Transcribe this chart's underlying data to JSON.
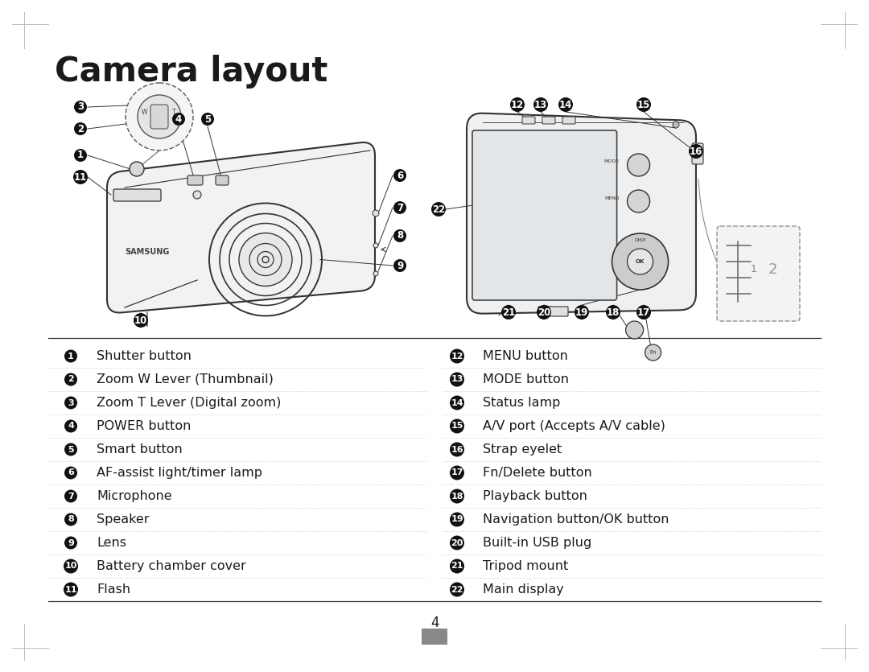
{
  "title": "Camera layout",
  "bg_color": "#ffffff",
  "page_number": "4",
  "left_items": [
    {
      "num": "1",
      "text": "Shutter button"
    },
    {
      "num": "2",
      "text": "Zoom W Lever (Thumbnail)"
    },
    {
      "num": "3",
      "text": "Zoom T Lever (Digital zoom)"
    },
    {
      "num": "4",
      "text": "POWER button"
    },
    {
      "num": "5",
      "text": "Smart button"
    },
    {
      "num": "6",
      "text": "AF-assist light/timer lamp"
    },
    {
      "num": "7",
      "text": "Microphone"
    },
    {
      "num": "8",
      "text": "Speaker"
    },
    {
      "num": "9",
      "text": "Lens"
    },
    {
      "num": "10",
      "text": "Battery chamber cover"
    },
    {
      "num": "11",
      "text": "Flash"
    }
  ],
  "right_items": [
    {
      "num": "12",
      "text": "MENU button"
    },
    {
      "num": "13",
      "text": "MODE button"
    },
    {
      "num": "14",
      "text": "Status lamp"
    },
    {
      "num": "15",
      "text": "A/V port (Accepts A/V cable)"
    },
    {
      "num": "16",
      "text": "Strap eyelet"
    },
    {
      "num": "17",
      "text": "Fn/Delete button"
    },
    {
      "num": "18",
      "text": "Playback button"
    },
    {
      "num": "19",
      "text": "Navigation button/OK button"
    },
    {
      "num": "20",
      "text": "Built-in USB plug"
    },
    {
      "num": "21",
      "text": "Tripod mount"
    },
    {
      "num": "22",
      "text": "Main display"
    }
  ],
  "title_fontsize": 30,
  "item_fontsize": 11.5,
  "text_color": "#1a1a1a",
  "line_color": "#aaaaaa",
  "cam_line_color": "#333333",
  "badge_color": "#111111"
}
